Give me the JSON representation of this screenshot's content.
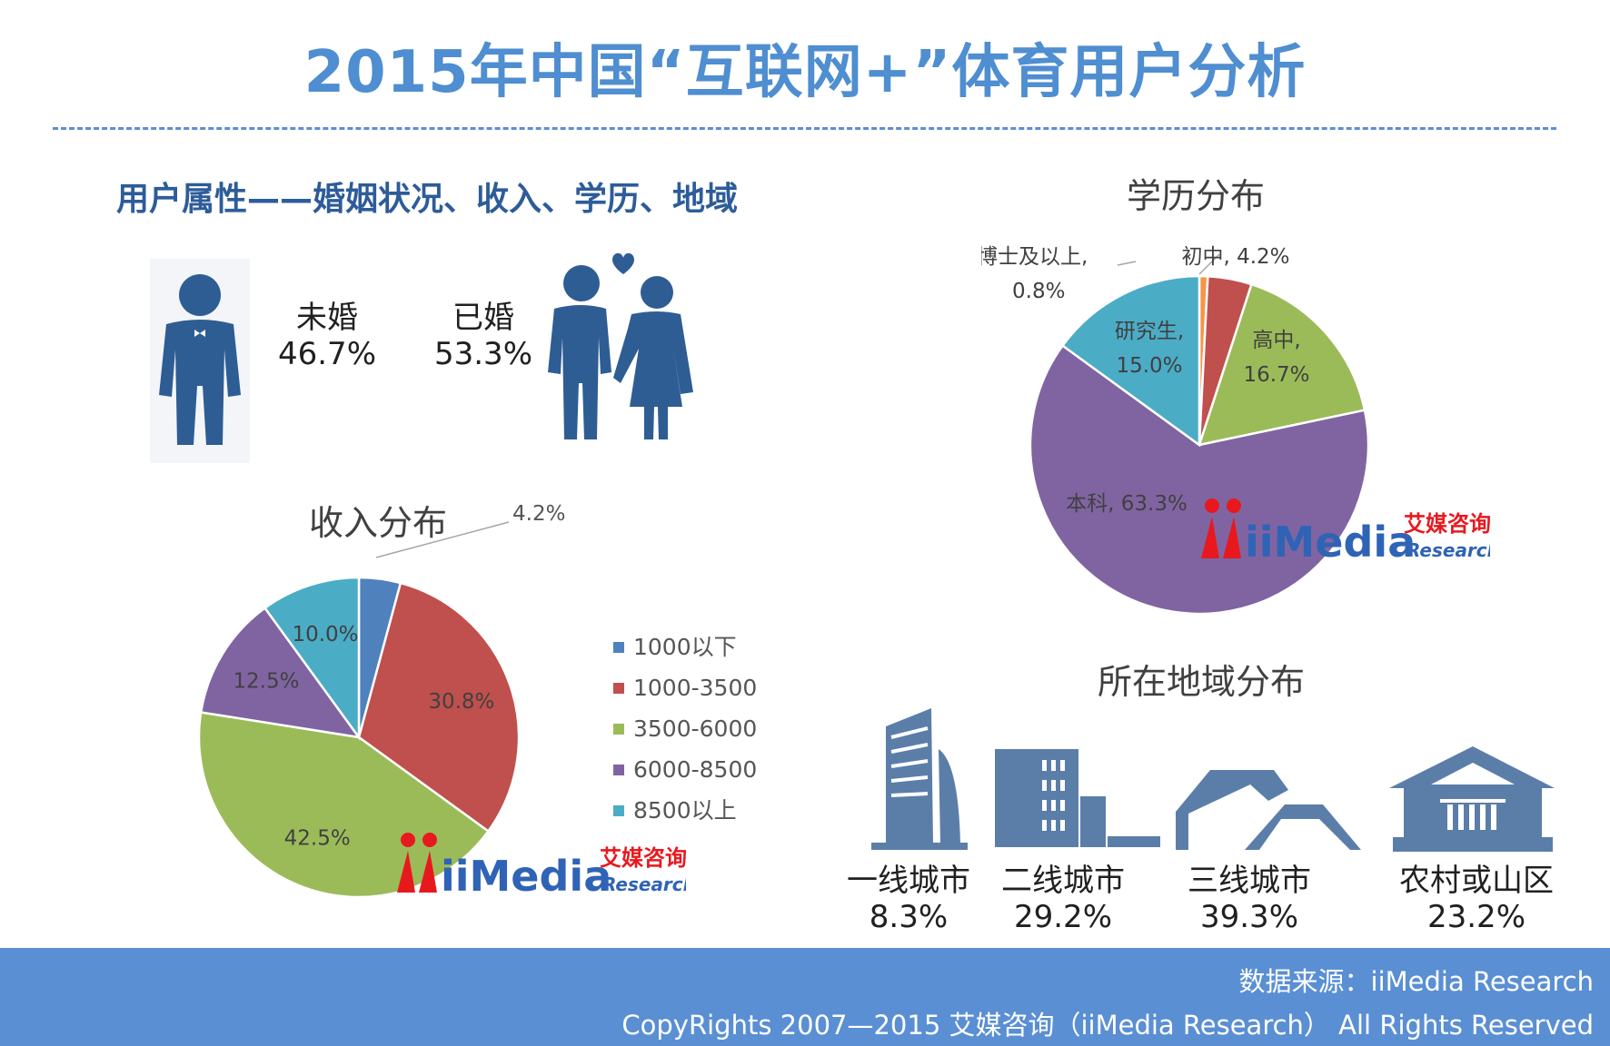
{
  "title": "2015年中国“互联网+”体育用户分析",
  "section_heading": "用户属性——婚姻状况、收入、学历、地域",
  "marital": [
    {
      "label": "未婚",
      "value": "46.7%"
    },
    {
      "label": "已婚",
      "value": "53.3%"
    }
  ],
  "logo": {
    "brand": "iiMedia",
    "cn": "艾媒咨询",
    "sub": "Research"
  },
  "colors": {
    "title": "#4f8ed0",
    "heading": "#2d5c99",
    "icon": "#2e5d94",
    "building": "#5b7ea9",
    "footer": "#5a8fd4",
    "blue": "#4f81bd",
    "red": "#c0504d",
    "green": "#9bbb59",
    "purple": "#8064a2",
    "teal": "#4bacc6",
    "orange": "#f79646"
  },
  "chart_data": [
    {
      "type": "pie",
      "title": "收入分布",
      "categories": [
        "1000以下",
        "1000-3500",
        "3500-6000",
        "6000-8500",
        "8500以上"
      ],
      "values": [
        4.2,
        30.8,
        42.5,
        12.5,
        10.0
      ],
      "labels": [
        "4.2%",
        "30.8%",
        "42.5%",
        "12.5%",
        "10.0%"
      ],
      "colors": [
        "#4f81bd",
        "#c0504d",
        "#9bbb59",
        "#8064a2",
        "#4bacc6"
      ],
      "legend": "right"
    },
    {
      "type": "pie",
      "title": "学历分布",
      "categories": [
        "博士及以上",
        "初中",
        "高中",
        "本科",
        "研究生"
      ],
      "values": [
        0.8,
        4.2,
        16.7,
        63.3,
        15.0
      ],
      "labels": [
        [
          "博士及以上,",
          "0.8%"
        ],
        [
          "初中, 4.2%"
        ],
        [
          "高中,",
          "16.7%"
        ],
        [
          "本科, 63.3%"
        ],
        [
          "研究生,",
          "15.0%"
        ]
      ],
      "colors": [
        "#f79646",
        "#c0504d",
        "#9bbb59",
        "#8064a2",
        "#4bacc6"
      ]
    },
    {
      "type": "table",
      "title": "所在地域分布",
      "categories": [
        "一线城市",
        "二线城市",
        "三线城市",
        "农村或山区"
      ],
      "values": [
        "8.3%",
        "29.2%",
        "39.3%",
        "23.2%"
      ]
    }
  ],
  "footer": {
    "source": "数据来源：iiMedia Research",
    "copyright": "CopyRights 2007—2015 艾媒咨询（iiMedia Research） All Rights Reserved"
  }
}
